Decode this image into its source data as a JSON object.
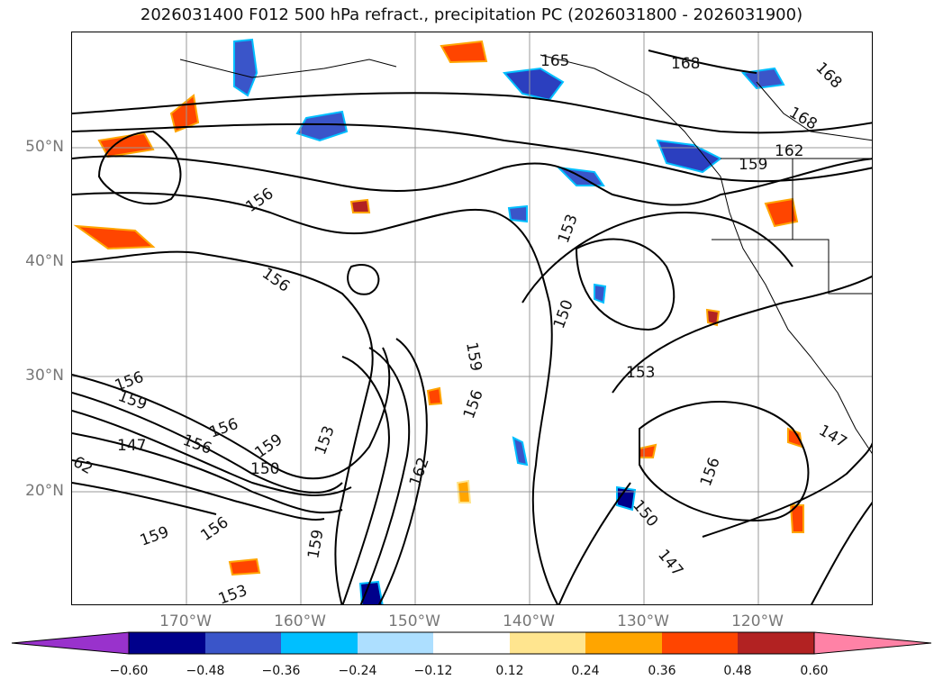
{
  "title": "2026031400 F012 500 hPa refract., precipitation PC (2026031800 - 2026031900)",
  "map": {
    "lat_labels": [
      "50°N",
      "40°N",
      "30°N",
      "20°N"
    ],
    "lon_labels": [
      "170°W",
      "160°W",
      "150°W",
      "140°W",
      "130°W",
      "120°W"
    ],
    "lat_range": [
      10,
      60
    ],
    "lon_range": [
      -180,
      -110
    ],
    "grid": true,
    "contour_labels": [
      "165",
      "168",
      "168",
      "168",
      "162",
      "159",
      "156",
      "156",
      "153",
      "150",
      "159",
      "156",
      "153",
      "156",
      "159",
      "147",
      "156",
      "156",
      "159",
      "150",
      "153",
      "162",
      "159",
      "156",
      "159",
      "153",
      "150",
      "147",
      "147",
      "156",
      "62"
    ]
  },
  "colorbar": {
    "tick_labels": [
      "−0.60",
      "−0.48",
      "−0.36",
      "−0.24",
      "−0.12",
      "0.12",
      "0.24",
      "0.36",
      "0.48",
      "0.60"
    ],
    "colors": [
      "#9932cc",
      "#00008b",
      "#3a55c9",
      "#00bfff",
      "#addfff",
      "#ffffff",
      "#ffe58f",
      "#ffa500",
      "#ff4500",
      "#b22222",
      "#ff82a6"
    ]
  }
}
